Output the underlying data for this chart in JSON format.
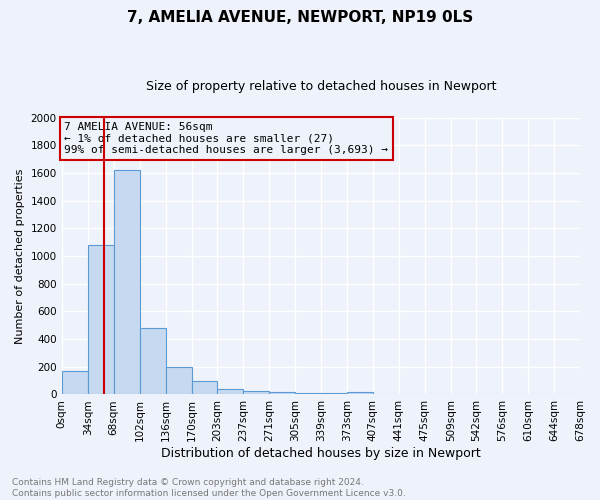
{
  "title1": "7, AMELIA AVENUE, NEWPORT, NP19 0LS",
  "title2": "Size of property relative to detached houses in Newport",
  "xlabel": "Distribution of detached houses by size in Newport",
  "ylabel": "Number of detached properties",
  "bin_edges": [
    0,
    34,
    68,
    102,
    136,
    170,
    203,
    237,
    271,
    305,
    339,
    373,
    407,
    441,
    475,
    509,
    542,
    576,
    610,
    644,
    678
  ],
  "bar_heights": [
    170,
    1080,
    1620,
    480,
    200,
    100,
    40,
    27,
    15,
    10,
    10,
    20,
    0,
    0,
    0,
    0,
    0,
    0,
    0,
    0
  ],
  "bar_color": "#c6d9f0",
  "bar_edge_color": "#5b9bd5",
  "vline_x": 56,
  "vline_color": "#cc0000",
  "annotation_text": "7 AMELIA AVENUE: 56sqm\n← 1% of detached houses are smaller (27)\n99% of semi-detached houses are larger (3,693) →",
  "annotation_box_color": "#cc0000",
  "annotation_text_color": "#000000",
  "ylim": [
    0,
    2000
  ],
  "yticks": [
    0,
    200,
    400,
    600,
    800,
    1000,
    1200,
    1400,
    1600,
    1800,
    2000
  ],
  "background_color": "#eef2fa",
  "grid_color": "#ffffff",
  "footer_text": "Contains HM Land Registry data © Crown copyright and database right 2024.\nContains public sector information licensed under the Open Government Licence v3.0.",
  "title1_fontsize": 11,
  "title2_fontsize": 9,
  "xlabel_fontsize": 9,
  "ylabel_fontsize": 8,
  "tick_fontsize": 7.5,
  "annotation_fontsize": 8,
  "footer_fontsize": 6.5
}
